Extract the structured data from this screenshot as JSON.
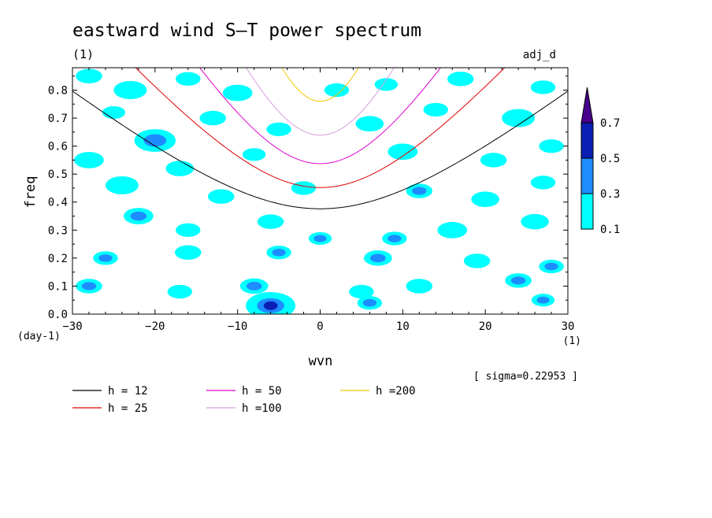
{
  "chart_data": {
    "type": "heatmap",
    "title": "eastward wind S–T power spectrum",
    "units_note": "(1)",
    "corner_label": "adj_d",
    "xlabel": "wvn",
    "xunits": "(1)",
    "ylabel": "freq",
    "yunits": "(day-1)",
    "xlim": [
      -30,
      30
    ],
    "ylim": [
      0,
      0.88
    ],
    "xticks": [
      -30,
      -20,
      -10,
      0,
      10,
      20,
      30
    ],
    "xtick_labels": [
      "−30",
      "−20",
      "−10",
      "0",
      "10",
      "20",
      "30"
    ],
    "yticks": [
      0,
      0.1,
      0.2,
      0.3,
      0.4,
      0.5,
      0.6,
      0.7,
      0.8
    ],
    "ytick_labels": [
      "0.0",
      "0.1",
      "0.2",
      "0.3",
      "0.4",
      "0.5",
      "0.6",
      "0.7",
      "0.8"
    ],
    "sigma_text": "[ sigma=0.22953 ]",
    "colorbar": {
      "levels": [
        0.1,
        0.3,
        0.5,
        0.7
      ],
      "level_labels": [
        "0.1",
        "0.3",
        "0.5",
        "0.7"
      ],
      "colors": [
        "#00ffff",
        "#1e8cff",
        "#0a1eb4",
        "#46008c"
      ]
    },
    "dispersion_curves": [
      {
        "name": "h = 12",
        "h": 12,
        "color": "#000000"
      },
      {
        "name": "h = 25",
        "h": 25,
        "color": "#e00000"
      },
      {
        "name": "h = 50",
        "h": 50,
        "color": "#e000d0"
      },
      {
        "name": "h =100",
        "h": 100,
        "color": "#d89ee0"
      },
      {
        "name": "h =200",
        "h": 200,
        "color": "#f0c800"
      }
    ],
    "patches": [
      {
        "x": -28,
        "y": 0.85,
        "r": 1.6,
        "v": 0.2
      },
      {
        "x": -23,
        "y": 0.8,
        "r": 2.0,
        "v": 0.2
      },
      {
        "x": -16,
        "y": 0.84,
        "r": 1.5,
        "v": 0.15
      },
      {
        "x": -10,
        "y": 0.79,
        "r": 1.8,
        "v": 0.2
      },
      {
        "x": 2,
        "y": 0.8,
        "r": 1.5,
        "v": 0.2
      },
      {
        "x": 8,
        "y": 0.82,
        "r": 1.4,
        "v": 0.15
      },
      {
        "x": 17,
        "y": 0.84,
        "r": 1.6,
        "v": 0.2
      },
      {
        "x": 27,
        "y": 0.81,
        "r": 1.5,
        "v": 0.2
      },
      {
        "x": -25,
        "y": 0.72,
        "r": 1.4,
        "v": 0.2
      },
      {
        "x": -20,
        "y": 0.62,
        "r": 2.5,
        "v": 0.35
      },
      {
        "x": -13,
        "y": 0.7,
        "r": 1.6,
        "v": 0.2
      },
      {
        "x": -5,
        "y": 0.66,
        "r": 1.5,
        "v": 0.2
      },
      {
        "x": 6,
        "y": 0.68,
        "r": 1.7,
        "v": 0.2
      },
      {
        "x": 14,
        "y": 0.73,
        "r": 1.5,
        "v": 0.2
      },
      {
        "x": 24,
        "y": 0.7,
        "r": 2.0,
        "v": 0.25
      },
      {
        "x": -28,
        "y": 0.55,
        "r": 1.8,
        "v": 0.2
      },
      {
        "x": -17,
        "y": 0.52,
        "r": 1.7,
        "v": 0.2
      },
      {
        "x": -8,
        "y": 0.57,
        "r": 1.4,
        "v": 0.2
      },
      {
        "x": 10,
        "y": 0.58,
        "r": 1.8,
        "v": 0.2
      },
      {
        "x": 21,
        "y": 0.55,
        "r": 1.6,
        "v": 0.2
      },
      {
        "x": 28,
        "y": 0.6,
        "r": 1.5,
        "v": 0.2
      },
      {
        "x": -24,
        "y": 0.46,
        "r": 2.0,
        "v": 0.25
      },
      {
        "x": -12,
        "y": 0.42,
        "r": 1.6,
        "v": 0.2
      },
      {
        "x": -2,
        "y": 0.45,
        "r": 1.5,
        "v": 0.2
      },
      {
        "x": 12,
        "y": 0.44,
        "r": 1.6,
        "v": 0.35
      },
      {
        "x": 20,
        "y": 0.41,
        "r": 1.7,
        "v": 0.2
      },
      {
        "x": 27,
        "y": 0.47,
        "r": 1.5,
        "v": 0.2
      },
      {
        "x": -22,
        "y": 0.35,
        "r": 1.8,
        "v": 0.35
      },
      {
        "x": -16,
        "y": 0.3,
        "r": 1.5,
        "v": 0.2
      },
      {
        "x": -6,
        "y": 0.33,
        "r": 1.6,
        "v": 0.2
      },
      {
        "x": 0,
        "y": 0.27,
        "r": 1.4,
        "v": 0.45
      },
      {
        "x": 9,
        "y": 0.27,
        "r": 1.5,
        "v": 0.4
      },
      {
        "x": 16,
        "y": 0.3,
        "r": 1.8,
        "v": 0.2
      },
      {
        "x": 26,
        "y": 0.33,
        "r": 1.7,
        "v": 0.2
      },
      {
        "x": -26,
        "y": 0.2,
        "r": 1.5,
        "v": 0.35
      },
      {
        "x": -16,
        "y": 0.22,
        "r": 1.6,
        "v": 0.2
      },
      {
        "x": -5,
        "y": 0.22,
        "r": 1.5,
        "v": 0.35
      },
      {
        "x": 7,
        "y": 0.2,
        "r": 1.7,
        "v": 0.35
      },
      {
        "x": 19,
        "y": 0.19,
        "r": 1.6,
        "v": 0.2
      },
      {
        "x": 28,
        "y": 0.17,
        "r": 1.5,
        "v": 0.35
      },
      {
        "x": -28,
        "y": 0.1,
        "r": 1.6,
        "v": 0.35
      },
      {
        "x": -17,
        "y": 0.08,
        "r": 1.5,
        "v": 0.2
      },
      {
        "x": -8,
        "y": 0.1,
        "r": 1.7,
        "v": 0.35
      },
      {
        "x": 5,
        "y": 0.08,
        "r": 1.5,
        "v": 0.2
      },
      {
        "x": 12,
        "y": 0.1,
        "r": 1.6,
        "v": 0.2
      },
      {
        "x": 24,
        "y": 0.12,
        "r": 1.6,
        "v": 0.35
      },
      {
        "x": -6,
        "y": 0.03,
        "r": 3.0,
        "v": 0.55
      },
      {
        "x": 6,
        "y": 0.04,
        "r": 1.5,
        "v": 0.35
      },
      {
        "x": 27,
        "y": 0.05,
        "r": 1.4,
        "v": 0.35
      }
    ]
  }
}
